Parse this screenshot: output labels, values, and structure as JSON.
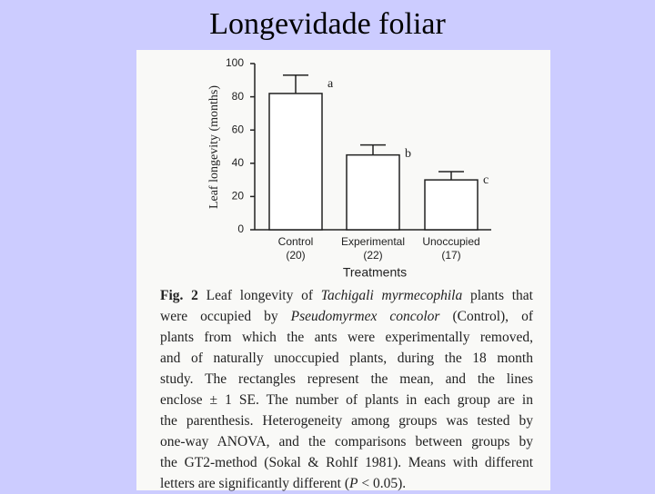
{
  "header": {
    "title": "Longevidade foliar"
  },
  "chart_data": {
    "type": "bar",
    "y_label": "Leaf longevity (months)",
    "x_label": "Treatments",
    "categories": [
      "Control",
      "Experimental",
      "Unoccupied"
    ],
    "group_sizes": [
      "(20)",
      "(22)",
      "(17)"
    ],
    "values": [
      82,
      45,
      30
    ],
    "errors": [
      11,
      6,
      5
    ],
    "letters": [
      "a",
      "b",
      "c"
    ],
    "color": "#ffffff",
    "ylim": [
      0,
      100
    ],
    "yticks": [
      0,
      20,
      40,
      60,
      80,
      100
    ]
  },
  "caption": [
    [
      {
        "text": "Fig. 2",
        "style": "bold"
      },
      {
        "text": " Leaf longevity of "
      },
      {
        "text": "Tachigali myrmecophila",
        "style": "italic"
      },
      {
        "text": " plants that"
      }
    ],
    [
      {
        "text": "were occupied by "
      },
      {
        "text": "Pseudomyrmex concolor",
        "style": "italic"
      },
      {
        "text": " (Control), of"
      }
    ],
    [
      {
        "text": "plants from which the ants were experimentally removed,"
      }
    ],
    [
      {
        "text": "and of naturally unoccupied plants, during the 18 month"
      }
    ],
    [
      {
        "text": "study. The rectangles represent the mean, and the lines"
      }
    ],
    [
      {
        "text": "enclose ± 1 SE. The number of plants in each group are in"
      }
    ],
    [
      {
        "text": "the parenthesis. Heterogeneity among groups was tested by"
      }
    ],
    [
      {
        "text": "one-way ANOVA, and the comparisons between groups by"
      }
    ],
    [
      {
        "text": "the GT2-method (Sokal & Rohlf 1981). Means with different"
      }
    ],
    [
      {
        "text": "letters are significantly different ("
      },
      {
        "text": "P",
        "style": "italic"
      },
      {
        "text": " < 0.05)."
      }
    ]
  ]
}
